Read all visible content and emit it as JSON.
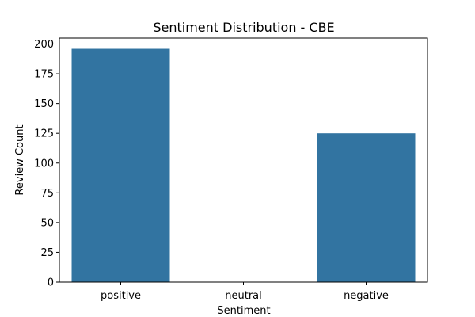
{
  "chart_data": {
    "type": "bar",
    "title": "Sentiment Distribution - CBE",
    "xlabel": "Sentiment",
    "ylabel": "Review Count",
    "categories": [
      "positive",
      "neutral",
      "negative"
    ],
    "values": [
      196,
      0,
      125
    ],
    "ylim": [
      0,
      205
    ],
    "yticks": [
      0,
      25,
      50,
      75,
      100,
      125,
      150,
      175,
      200
    ],
    "grid": false,
    "bar_color": "#3274a1"
  }
}
